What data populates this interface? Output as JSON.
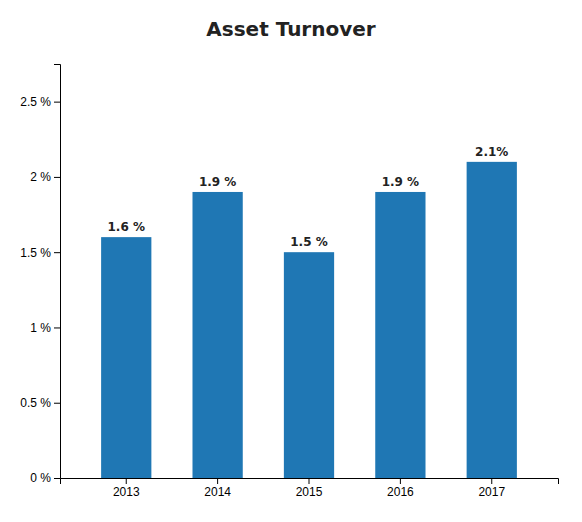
{
  "chart_data": {
    "type": "bar",
    "title": "Asset Turnover",
    "categories": [
      "2013",
      "2014",
      "2015",
      "2016",
      "2017"
    ],
    "values": [
      1.6,
      1.9,
      1.5,
      1.9,
      2.1
    ],
    "value_labels": [
      "1.6 %",
      "1.9 %",
      "1.5 %",
      "1.9 %",
      "2.1%"
    ],
    "ylim": [
      0,
      2.75
    ],
    "yticks": [
      {
        "value": 0,
        "label": "0 %"
      },
      {
        "value": 0.5,
        "label": "0.5 %"
      },
      {
        "value": 1.0,
        "label": "1 %"
      },
      {
        "value": 1.5,
        "label": "1.5 %"
      },
      {
        "value": 2.0,
        "label": "2 %"
      },
      {
        "value": 2.5,
        "label": "2.5 %"
      }
    ],
    "grid": false
  }
}
